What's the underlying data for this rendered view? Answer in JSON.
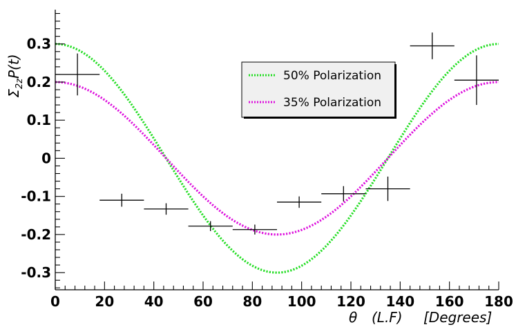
{
  "chart_data": {
    "type": "scatter",
    "xlabel": {
      "theta": "θ",
      "frame": "(L.F)",
      "unit": "[Degrees]"
    },
    "ylabel": {
      "symbol": "Σ",
      "subscript": "2z",
      "rest": "P(t)"
    },
    "xlim": [
      0,
      180
    ],
    "ylim": [
      -0.345,
      0.39
    ],
    "x_ticks": [
      "0",
      "20",
      "40",
      "60",
      "80",
      "100",
      "120",
      "140",
      "160",
      "180"
    ],
    "y_ticks": [
      "-0.3",
      "-0.2",
      "-0.1",
      "0",
      "0.1",
      "0.2",
      "0.3"
    ],
    "grid": false,
    "legend_position": "top-right",
    "series": [
      {
        "name": "50% Polarization",
        "kind": "curve",
        "color": "#22dd22",
        "amplitude": 0.3,
        "period_deg": 180
      },
      {
        "name": "35% Polarization",
        "kind": "curve",
        "color": "#dd11dd",
        "amplitude": 0.2,
        "period_deg": 180
      }
    ],
    "points": [
      {
        "x": 9,
        "y": 0.22,
        "xerr": 9,
        "yerr": 0.055
      },
      {
        "x": 27,
        "y": -0.11,
        "xerr": 9,
        "yerr": 0.017
      },
      {
        "x": 45,
        "y": -0.133,
        "xerr": 9,
        "yerr": 0.015
      },
      {
        "x": 63,
        "y": -0.178,
        "xerr": 9,
        "yerr": 0.013
      },
      {
        "x": 81,
        "y": -0.187,
        "xerr": 9,
        "yerr": 0.013
      },
      {
        "x": 99,
        "y": -0.115,
        "xerr": 9,
        "yerr": 0.015
      },
      {
        "x": 117,
        "y": -0.093,
        "xerr": 9,
        "yerr": 0.02
      },
      {
        "x": 135,
        "y": -0.08,
        "xerr": 9,
        "yerr": 0.032
      },
      {
        "x": 153,
        "y": 0.295,
        "xerr": 9,
        "yerr": 0.035
      },
      {
        "x": 171,
        "y": 0.205,
        "xerr": 9,
        "yerr": 0.065
      }
    ]
  }
}
